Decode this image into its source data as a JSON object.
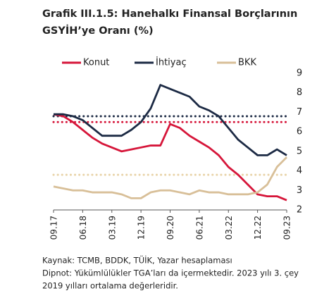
{
  "chart_data": {
    "type": "line",
    "title": [
      "Grafik III.1.5: Hanehalkı Finansal Borçlarının",
      "GSYİH’ye Oranı (%)"
    ],
    "notes": [
      "Kaynak: TCMB, BDDK, TÜİK, Yazar hesaplaması",
      "Dipnot: Yükümlülükler TGA’ları da içermektedir. 2023 yılı 3. çey",
      "2019 yılları ortalama değerleridir."
    ],
    "categories": [
      "09.17",
      null,
      null,
      "06.18",
      null,
      null,
      "03.19",
      null,
      null,
      "12.19",
      null,
      null,
      "09.20",
      null,
      null,
      "06.21",
      null,
      null,
      "03.22",
      null,
      null,
      "12.22",
      null,
      null,
      "09.23"
    ],
    "series": [
      {
        "name": "Konut",
        "color": "#d6163a",
        "values": [
          6.9,
          6.8,
          6.5,
          6.1,
          5.7,
          5.4,
          5.2,
          5.0,
          5.1,
          5.2,
          5.3,
          5.3,
          6.4,
          6.2,
          5.8,
          5.5,
          5.2,
          4.8,
          4.2,
          3.8,
          3.3,
          2.8,
          2.7,
          2.7,
          2.5
        ]
      },
      {
        "name": "İhtiyaç",
        "color": "#1c2a44",
        "values": [
          6.9,
          6.9,
          6.8,
          6.6,
          6.2,
          5.8,
          5.8,
          5.8,
          6.1,
          6.5,
          7.2,
          8.4,
          8.2,
          8.0,
          7.8,
          7.3,
          7.1,
          6.8,
          6.2,
          5.6,
          5.2,
          4.8,
          4.8,
          5.1,
          4.8
        ]
      },
      {
        "name": "BKK",
        "color": "#d8bf98",
        "values": [
          3.2,
          3.1,
          3.0,
          3.0,
          2.9,
          2.9,
          2.9,
          2.8,
          2.6,
          2.6,
          2.9,
          3.0,
          3.0,
          2.9,
          2.8,
          3.0,
          2.9,
          2.9,
          2.8,
          2.8,
          2.8,
          2.9,
          3.3,
          4.2,
          4.7
        ]
      }
    ],
    "averages": [
      {
        "value": 6.5,
        "color": "#d6163a"
      },
      {
        "value": 6.8,
        "color": "#1c2a44"
      },
      {
        "value": 3.8,
        "color": "#e8d3a8"
      }
    ],
    "ylim": [
      2,
      9
    ],
    "yticks": [
      2,
      3,
      4,
      5,
      6,
      7,
      8,
      9
    ],
    "y_axis_side": "right"
  }
}
